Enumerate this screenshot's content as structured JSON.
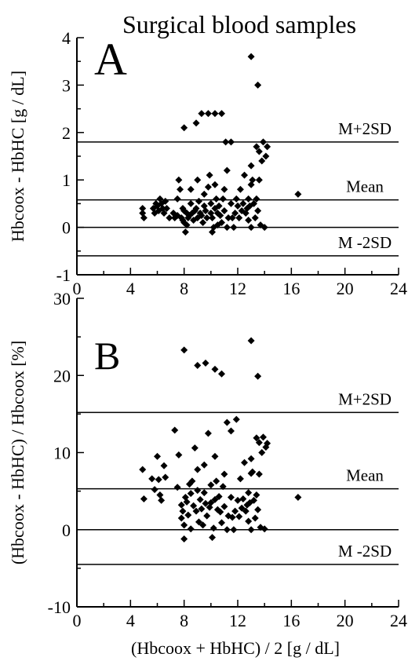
{
  "title": "Surgical blood samples",
  "chart_data": [
    {
      "panel": "A",
      "type": "scatter",
      "ylabel": "Hbcoox - HbHC [g / dL]",
      "xlim": [
        0,
        24
      ],
      "ylim": [
        -1,
        4
      ],
      "xticks": [
        0,
        4,
        8,
        12,
        16,
        20,
        24
      ],
      "yticks": [
        -1,
        0,
        1,
        2,
        3,
        4
      ],
      "reference_lines": [
        {
          "label": "M+2SD",
          "y": 1.8
        },
        {
          "label": "Mean",
          "y": 0.58
        },
        {
          "label": "",
          "y": 0
        },
        {
          "label": "M -2SD",
          "y": -0.6
        }
      ],
      "points": [
        [
          4.9,
          0.4
        ],
        [
          4.9,
          0.3
        ],
        [
          5.0,
          0.2
        ],
        [
          5.7,
          0.4
        ],
        [
          5.8,
          0.3
        ],
        [
          5.9,
          0.5
        ],
        [
          6.0,
          0.45
        ],
        [
          6.1,
          0.35
        ],
        [
          6.2,
          0.6
        ],
        [
          6.3,
          0.5
        ],
        [
          6.4,
          0.4
        ],
        [
          6.5,
          0.3
        ],
        [
          6.6,
          0.55
        ],
        [
          6.7,
          0.4
        ],
        [
          6.9,
          0.2
        ],
        [
          7.2,
          0.3
        ],
        [
          7.3,
          0.2
        ],
        [
          7.5,
          0.6
        ],
        [
          7.5,
          0.25
        ],
        [
          7.6,
          1.0
        ],
        [
          7.7,
          0.8
        ],
        [
          7.8,
          0.2
        ],
        [
          7.9,
          0.15
        ],
        [
          7.9,
          0.4
        ],
        [
          8.0,
          0.35
        ],
        [
          8.0,
          0.1
        ],
        [
          8.1,
          -0.1
        ],
        [
          8.2,
          0.3
        ],
        [
          8.2,
          0.05
        ],
        [
          8.3,
          0.2
        ],
        [
          8.4,
          0.25
        ],
        [
          8.5,
          0.8
        ],
        [
          8.5,
          0.5
        ],
        [
          8.6,
          0.3
        ],
        [
          8.7,
          0.15
        ],
        [
          8.8,
          0.35
        ],
        [
          8.9,
          0.4
        ],
        [
          9.0,
          1.0
        ],
        [
          9.0,
          0.2
        ],
        [
          9.1,
          0.55
        ],
        [
          9.2,
          0.3
        ],
        [
          9.3,
          0.25
        ],
        [
          9.4,
          0.1
        ],
        [
          9.5,
          0.45
        ],
        [
          9.5,
          0.7
        ],
        [
          9.6,
          0.35
        ],
        [
          9.7,
          0.2
        ],
        [
          9.8,
          0.85
        ],
        [
          9.9,
          1.1
        ],
        [
          10.0,
          0.5
        ],
        [
          10.0,
          0.3
        ],
        [
          10.1,
          0.2
        ],
        [
          10.1,
          -0.1
        ],
        [
          10.2,
          0.0
        ],
        [
          10.3,
          0.4
        ],
        [
          10.3,
          0.9
        ],
        [
          10.4,
          0.6
        ],
        [
          10.5,
          0.3
        ],
        [
          10.5,
          0.05
        ],
        [
          10.6,
          0.45
        ],
        [
          10.7,
          0.25
        ],
        [
          10.8,
          0.1
        ],
        [
          10.9,
          0.6
        ],
        [
          11.0,
          0.8
        ],
        [
          11.0,
          0.35
        ],
        [
          11.2,
          0.0
        ],
        [
          11.3,
          0.2
        ],
        [
          11.5,
          0.5
        ],
        [
          11.6,
          0.2
        ],
        [
          11.7,
          0.0
        ],
        [
          11.8,
          0.3
        ],
        [
          11.9,
          0.6
        ],
        [
          12.0,
          0.45
        ],
        [
          12.1,
          0.2
        ],
        [
          12.2,
          0.8
        ],
        [
          12.3,
          0.35
        ],
        [
          12.4,
          0.5
        ],
        [
          12.5,
          1.1
        ],
        [
          12.6,
          0.3
        ],
        [
          12.7,
          0.4
        ],
        [
          12.8,
          0.6
        ],
        [
          12.8,
          0.15
        ],
        [
          12.9,
          0.45
        ],
        [
          13.0,
          0.9
        ],
        [
          13.0,
          0.0
        ],
        [
          13.1,
          1.0
        ],
        [
          13.2,
          0.5
        ],
        [
          13.3,
          0.2
        ],
        [
          13.4,
          0.6
        ],
        [
          13.5,
          0.35
        ],
        [
          13.6,
          1.0
        ],
        [
          13.7,
          0.05
        ],
        [
          14.0,
          0.0
        ],
        [
          8.0,
          2.1
        ],
        [
          8.9,
          2.2
        ],
        [
          9.3,
          2.4
        ],
        [
          9.8,
          2.4
        ],
        [
          10.3,
          2.4
        ],
        [
          10.8,
          2.4
        ],
        [
          11.1,
          1.8
        ],
        [
          11.5,
          1.8
        ],
        [
          13.0,
          3.6
        ],
        [
          13.5,
          3.0
        ],
        [
          13.4,
          1.7
        ],
        [
          13.6,
          1.6
        ],
        [
          13.8,
          1.4
        ],
        [
          13.9,
          1.8
        ],
        [
          14.1,
          1.5
        ],
        [
          14.2,
          1.7
        ],
        [
          13.0,
          1.3
        ],
        [
          11.2,
          1.2
        ],
        [
          16.5,
          0.7
        ]
      ]
    },
    {
      "panel": "B",
      "type": "scatter",
      "ylabel": "(Hbcoox - HbHC) / Hbcoox [%]",
      "xlabel": "(Hbcoox + HbHC) / 2 [g / dL]",
      "xlim": [
        0,
        24
      ],
      "ylim": [
        -10,
        30
      ],
      "xticks": [
        0,
        4,
        8,
        12,
        16,
        20,
        24
      ],
      "yticks": [
        -10,
        0,
        10,
        20,
        30
      ],
      "reference_lines": [
        {
          "label": "M+2SD",
          "y": 15.2
        },
        {
          "label": "Mean",
          "y": 5.3
        },
        {
          "label": "",
          "y": 0
        },
        {
          "label": "M -2SD",
          "y": -4.5
        }
      ],
      "points": [
        [
          4.9,
          7.8
        ],
        [
          5.0,
          4.0
        ],
        [
          5.6,
          6.6
        ],
        [
          5.8,
          5.2
        ],
        [
          6.0,
          9.5
        ],
        [
          6.1,
          6.5
        ],
        [
          6.2,
          4.5
        ],
        [
          6.3,
          3.8
        ],
        [
          6.5,
          8.3
        ],
        [
          6.6,
          6.8
        ],
        [
          7.3,
          12.9
        ],
        [
          7.5,
          5.5
        ],
        [
          7.6,
          9.7
        ],
        [
          7.8,
          1.5
        ],
        [
          7.8,
          3.2
        ],
        [
          7.9,
          2.4
        ],
        [
          8.0,
          0.6
        ],
        [
          8.0,
          -1.2
        ],
        [
          8.1,
          4.2
        ],
        [
          8.2,
          3.6
        ],
        [
          8.3,
          1.9
        ],
        [
          8.4,
          5.9
        ],
        [
          8.5,
          4.7
        ],
        [
          8.5,
          0.1
        ],
        [
          8.6,
          6.3
        ],
        [
          8.7,
          3.1
        ],
        [
          8.8,
          10.6
        ],
        [
          8.9,
          2.4
        ],
        [
          9.0,
          5.1
        ],
        [
          9.0,
          7.8
        ],
        [
          9.1,
          1.0
        ],
        [
          9.2,
          3.9
        ],
        [
          9.3,
          2.7
        ],
        [
          9.4,
          0.6
        ],
        [
          9.5,
          4.8
        ],
        [
          9.5,
          8.4
        ],
        [
          9.6,
          3.4
        ],
        [
          9.7,
          1.8
        ],
        [
          9.8,
          12.5
        ],
        [
          9.9,
          2.9
        ],
        [
          10.0,
          5.8
        ],
        [
          10.0,
          3.5
        ],
        [
          10.1,
          -1.0
        ],
        [
          10.2,
          0.2
        ],
        [
          10.3,
          3.9
        ],
        [
          10.3,
          9.5
        ],
        [
          10.4,
          6.3
        ],
        [
          10.5,
          2.6
        ],
        [
          10.6,
          4.3
        ],
        [
          10.7,
          2.3
        ],
        [
          10.8,
          0.9
        ],
        [
          10.9,
          5.6
        ],
        [
          11.0,
          7.2
        ],
        [
          11.0,
          3.0
        ],
        [
          11.2,
          0.0
        ],
        [
          11.3,
          1.8
        ],
        [
          11.5,
          4.2
        ],
        [
          11.6,
          1.6
        ],
        [
          11.7,
          0.0
        ],
        [
          11.8,
          2.4
        ],
        [
          11.9,
          14.3
        ],
        [
          12.0,
          3.8
        ],
        [
          12.1,
          1.7
        ],
        [
          12.2,
          6.6
        ],
        [
          12.3,
          2.8
        ],
        [
          12.4,
          4.0
        ],
        [
          12.5,
          8.7
        ],
        [
          12.6,
          2.4
        ],
        [
          12.7,
          3.2
        ],
        [
          12.8,
          4.8
        ],
        [
          12.8,
          1.1
        ],
        [
          12.9,
          3.5
        ],
        [
          13.0,
          7.3
        ],
        [
          13.0,
          0.0
        ],
        [
          13.1,
          7.5
        ],
        [
          13.2,
          3.8
        ],
        [
          13.3,
          1.5
        ],
        [
          13.4,
          4.5
        ],
        [
          13.5,
          2.6
        ],
        [
          13.6,
          7.2
        ],
        [
          13.7,
          0.3
        ],
        [
          14.0,
          0.1
        ],
        [
          8.0,
          23.3
        ],
        [
          9.0,
          21.3
        ],
        [
          9.6,
          21.6
        ],
        [
          10.3,
          20.8
        ],
        [
          10.8,
          20.2
        ],
        [
          11.2,
          13.9
        ],
        [
          11.5,
          12.8
        ],
        [
          13.0,
          24.5
        ],
        [
          13.5,
          19.9
        ],
        [
          13.4,
          11.9
        ],
        [
          13.6,
          11.3
        ],
        [
          13.8,
          10.0
        ],
        [
          13.9,
          12.0
        ],
        [
          14.1,
          10.7
        ],
        [
          14.2,
          11.2
        ],
        [
          13.0,
          9.2
        ],
        [
          16.5,
          4.2
        ]
      ]
    }
  ]
}
